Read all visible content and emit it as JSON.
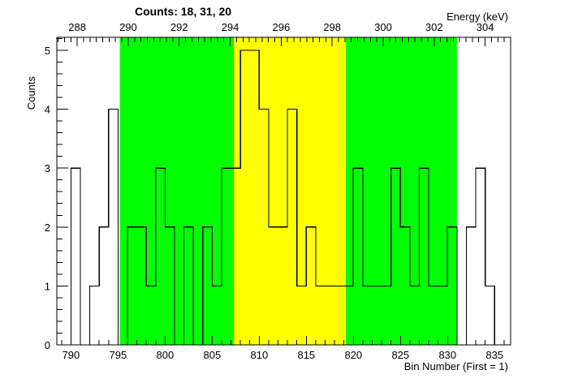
{
  "chart_data": {
    "type": "histogram",
    "title": "Counts:   18,   31,   20",
    "ylabel": "Counts",
    "xlabel": "Bin Number (First = 1)",
    "x2label": "Energy (keV)",
    "xlim": [
      788.5,
      836.7
    ],
    "ylim": [
      0,
      5.22
    ],
    "x2lim": [
      287.2,
      305.0
    ],
    "x_ticks": [
      790,
      795,
      800,
      805,
      810,
      815,
      820,
      825,
      830,
      835
    ],
    "x_tick_labels": [
      "790",
      "795",
      "800",
      "805",
      "810",
      "815",
      "820",
      "825",
      "830",
      "835"
    ],
    "y_ticks": [
      0,
      1,
      2,
      3,
      4,
      5
    ],
    "y_tick_labels": [
      "0",
      "1",
      "2",
      "3",
      "4",
      "5"
    ],
    "x2_ticks": [
      288,
      290,
      292,
      294,
      296,
      298,
      300,
      302,
      304
    ],
    "x2_tick_labels": [
      "288",
      "290",
      "292",
      "294",
      "296",
      "298",
      "300",
      "302",
      "304"
    ],
    "regions": [
      {
        "name": "left background",
        "start": 795.2,
        "end": 807.3,
        "color": "#00ff00"
      },
      {
        "name": "peak",
        "start": 807.3,
        "end": 819.2,
        "color": "#ffff00"
      },
      {
        "name": "right background",
        "start": 819.2,
        "end": 831.0,
        "color": "#00ff00"
      }
    ],
    "bin_width": 1.0,
    "bins": {
      "x": [
        789,
        790,
        791,
        792,
        793,
        794,
        795,
        796,
        797,
        798,
        799,
        800,
        801,
        802,
        803,
        804,
        805,
        806,
        807,
        808,
        809,
        810,
        811,
        812,
        813,
        814,
        815,
        816,
        817,
        818,
        819,
        820,
        821,
        822,
        823,
        824,
        825,
        826,
        827,
        828,
        829,
        830,
        831,
        832,
        833,
        834,
        835
      ],
      "y": [
        0,
        3,
        0,
        1,
        2,
        4,
        0,
        2,
        2,
        1,
        3,
        2,
        0,
        2,
        0,
        2,
        1,
        3,
        3,
        5,
        5,
        4,
        2,
        2,
        4,
        1,
        2,
        1,
        1,
        1,
        1,
        3,
        1,
        1,
        1,
        3,
        2,
        1,
        3,
        1,
        1,
        2,
        0,
        2,
        3,
        1,
        0
      ]
    }
  }
}
